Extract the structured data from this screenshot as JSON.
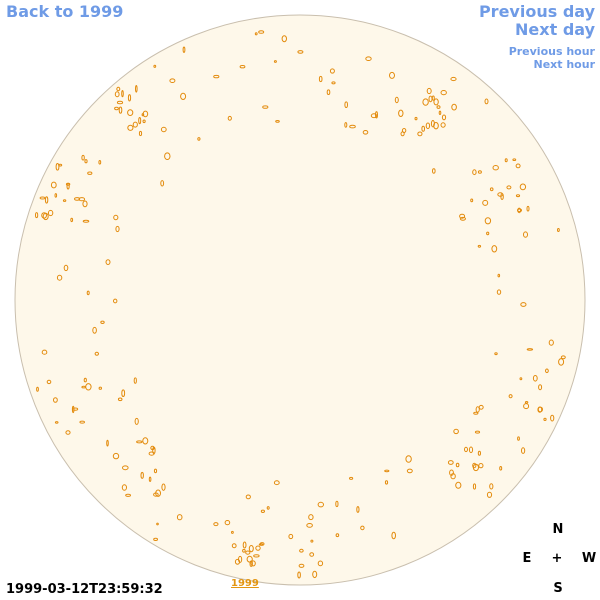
{
  "navigation": {
    "back": "Back to 1999",
    "previous_day": "Previous day",
    "next_day": "Next day",
    "previous_hour": "Previous hour",
    "next_hour": "Next hour"
  },
  "timestamp": "1999-03-12T23:59:32",
  "year_link": "1999",
  "compass": {
    "north": "N",
    "east": "E",
    "center": "+",
    "west": "W",
    "south": "S"
  }
}
